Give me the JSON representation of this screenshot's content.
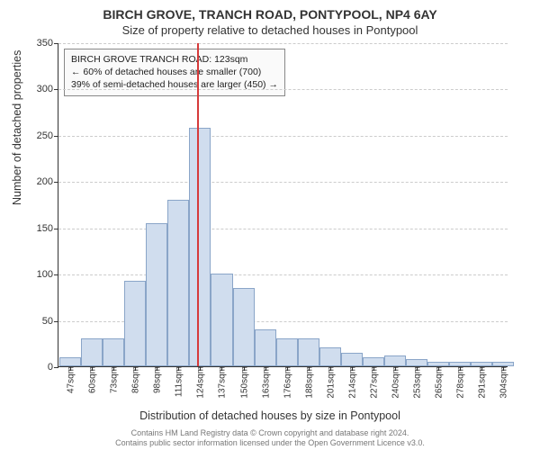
{
  "title": {
    "main": "BIRCH GROVE, TRANCH ROAD, PONTYPOOL, NP4 6AY",
    "sub": "Size of property relative to detached houses in Pontypool"
  },
  "chart": {
    "type": "histogram",
    "background_color": "#ffffff",
    "grid_color": "#cccccc",
    "axis_color": "#333333",
    "bar_fill": "#d0ddee",
    "bar_border": "#8aa5c8",
    "ref_line_color": "#d63a3a",
    "ref_line_x": 123,
    "xlim": [
      40,
      310
    ],
    "ylim": [
      0,
      350
    ],
    "ytick_step": 50,
    "x_bin_width": 13,
    "x_start": 47,
    "x_labels": [
      "47sqm",
      "60sqm",
      "73sqm",
      "86sqm",
      "98sqm",
      "111sqm",
      "124sqm",
      "137sqm",
      "150sqm",
      "163sqm",
      "176sqm",
      "188sqm",
      "201sqm",
      "214sqm",
      "227sqm",
      "240sqm",
      "253sqm",
      "265sqm",
      "278sqm",
      "291sqm",
      "304sqm"
    ],
    "values": [
      10,
      30,
      30,
      92,
      155,
      180,
      258,
      100,
      85,
      40,
      30,
      30,
      20,
      15,
      10,
      12,
      8,
      5,
      5,
      5,
      5
    ],
    "ylabel": "Number of detached properties",
    "xlabel": "Distribution of detached houses by size in Pontypool",
    "label_fontsize_pt": 12,
    "tick_fontsize_pt": 10,
    "title_fontsize_pt": 14
  },
  "infobox": {
    "line1": "BIRCH GROVE TRANCH ROAD: 123sqm",
    "line2": "← 60% of detached houses are smaller (700)",
    "line3": "39% of semi-detached houses are larger (450) →",
    "border_color": "#888888",
    "background_color": "#fafafa",
    "fontsize_pt": 10
  },
  "attribution": {
    "line1": "Contains HM Land Registry data © Crown copyright and database right 2024.",
    "line2": "Contains public sector information licensed under the Open Government Licence v3.0.",
    "color": "#777777",
    "fontsize_pt": 9
  }
}
